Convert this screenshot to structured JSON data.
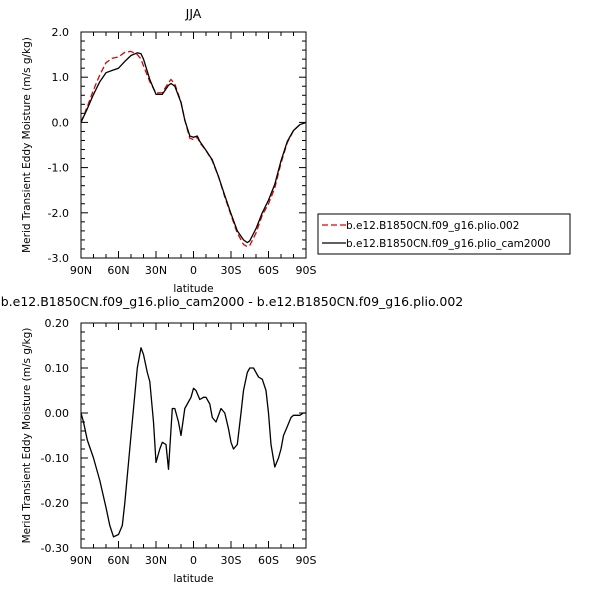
{
  "chart_data": [
    {
      "type": "line",
      "title": "JJA",
      "xlabel": "latitude",
      "ylabel": "Merid Transient Eddy Moisture (m/s g/kg)",
      "xlim": [
        90,
        -90
      ],
      "ylim": [
        -3.0,
        2.0
      ],
      "x_ticks": [
        {
          "value": 90,
          "label": "90N"
        },
        {
          "value": 60,
          "label": "60N"
        },
        {
          "value": 30,
          "label": "30N"
        },
        {
          "value": 0,
          "label": "0"
        },
        {
          "value": -30,
          "label": "30S"
        },
        {
          "value": -60,
          "label": "60S"
        },
        {
          "value": -90,
          "label": "90S"
        }
      ],
      "y_ticks": [
        {
          "value": 2.0,
          "label": "2.0"
        },
        {
          "value": 1.0,
          "label": "1.0"
        },
        {
          "value": 0.0,
          "label": "0.0"
        },
        {
          "value": -1.0,
          "label": "-1.0"
        },
        {
          "value": -2.0,
          "label": "-2.0"
        },
        {
          "value": -3.0,
          "label": "-3.0"
        }
      ],
      "grid": false,
      "legend_position": "right",
      "x": [
        90,
        85,
        80,
        75,
        70,
        65,
        60,
        55,
        50,
        45,
        42,
        40,
        35,
        30,
        25,
        20,
        18,
        15,
        10,
        7,
        3,
        0,
        -3,
        -5,
        -10,
        -15,
        -20,
        -25,
        -30,
        -35,
        -40,
        -43,
        -45,
        -50,
        -55,
        -60,
        -65,
        -70,
        -75,
        -80,
        -85,
        -90
      ],
      "series": [
        {
          "name": "b.e12.B1850CN.f09_g16.plio.002",
          "color": "#e00000",
          "dash": "dashed",
          "values": [
            0.0,
            0.35,
            0.72,
            1.05,
            1.32,
            1.42,
            1.45,
            1.55,
            1.57,
            1.5,
            1.4,
            1.25,
            0.9,
            0.65,
            0.66,
            0.88,
            0.95,
            0.85,
            0.45,
            0.05,
            -0.35,
            -0.38,
            -0.33,
            -0.45,
            -0.62,
            -0.85,
            -1.2,
            -1.65,
            -2.05,
            -2.45,
            -2.7,
            -2.75,
            -2.72,
            -2.45,
            -2.05,
            -1.8,
            -1.45,
            -0.9,
            -0.45,
            -0.18,
            -0.05,
            0.0
          ]
        },
        {
          "name": "b.e12.B1850CN.f09_g16.plio_cam2000",
          "color": "#000000",
          "dash": "solid",
          "values": [
            0.0,
            0.3,
            0.62,
            0.9,
            1.1,
            1.15,
            1.2,
            1.35,
            1.48,
            1.54,
            1.52,
            1.4,
            0.95,
            0.62,
            0.62,
            0.82,
            0.86,
            0.8,
            0.44,
            0.05,
            -0.3,
            -0.33,
            -0.3,
            -0.42,
            -0.62,
            -0.83,
            -1.2,
            -1.62,
            -2.02,
            -2.4,
            -2.6,
            -2.66,
            -2.62,
            -2.35,
            -2.0,
            -1.72,
            -1.37,
            -0.85,
            -0.42,
            -0.18,
            -0.05,
            0.0
          ]
        }
      ]
    },
    {
      "type": "line",
      "title": "b.e12.B1850CN.f09_g16.plio_cam2000 - b.e12.B1850CN.f09_g16.plio.002",
      "xlabel": "latitude",
      "ylabel": "Merid Transient Eddy Moisture (m/s g/kg)",
      "xlim": [
        90,
        -90
      ],
      "ylim": [
        -0.3,
        0.2
      ],
      "x_ticks": [
        {
          "value": 90,
          "label": "90N"
        },
        {
          "value": 60,
          "label": "60N"
        },
        {
          "value": 30,
          "label": "30N"
        },
        {
          "value": 0,
          "label": "0"
        },
        {
          "value": -30,
          "label": "30S"
        },
        {
          "value": -60,
          "label": "60S"
        },
        {
          "value": -90,
          "label": "90S"
        }
      ],
      "y_ticks": [
        {
          "value": 0.2,
          "label": "0.20"
        },
        {
          "value": 0.1,
          "label": "0.10"
        },
        {
          "value": 0.0,
          "label": "0.00"
        },
        {
          "value": -0.1,
          "label": "-0.10"
        },
        {
          "value": -0.2,
          "label": "-0.20"
        },
        {
          "value": -0.3,
          "label": "-0.30"
        }
      ],
      "grid": false,
      "x": [
        90,
        88,
        85,
        80,
        75,
        70,
        67,
        64,
        60,
        57,
        55,
        50,
        45,
        42,
        40,
        37,
        35,
        32,
        30,
        27,
        25,
        22,
        20,
        17,
        15,
        12,
        10,
        7,
        5,
        2,
        0,
        -2,
        -5,
        -8,
        -10,
        -13,
        -15,
        -18,
        -20,
        -22,
        -25,
        -28,
        -30,
        -32,
        -35,
        -38,
        -40,
        -43,
        -45,
        -48,
        -50,
        -52,
        -55,
        -58,
        -60,
        -62,
        -65,
        -68,
        -70,
        -72,
        -75,
        -78,
        -80,
        -83,
        -85,
        -88,
        -90
      ],
      "series": [
        {
          "name": "",
          "color": "#000000",
          "dash": "solid",
          "values": [
            0.0,
            -0.02,
            -0.06,
            -0.1,
            -0.15,
            -0.21,
            -0.25,
            -0.275,
            -0.27,
            -0.25,
            -0.2,
            -0.05,
            0.1,
            0.145,
            0.13,
            0.09,
            0.07,
            -0.02,
            -0.11,
            -0.08,
            -0.065,
            -0.07,
            -0.125,
            0.01,
            0.01,
            -0.02,
            -0.05,
            0.01,
            0.02,
            0.035,
            0.055,
            0.05,
            0.03,
            0.035,
            0.035,
            0.02,
            -0.01,
            -0.02,
            -0.005,
            0.01,
            0.0,
            -0.035,
            -0.065,
            -0.08,
            -0.07,
            0.0,
            0.05,
            0.09,
            0.1,
            0.1,
            0.09,
            0.08,
            0.075,
            0.05,
            0.0,
            -0.07,
            -0.12,
            -0.1,
            -0.08,
            -0.05,
            -0.03,
            -0.01,
            -0.005,
            -0.005,
            -0.005,
            0.0,
            0.0
          ]
        }
      ]
    }
  ]
}
